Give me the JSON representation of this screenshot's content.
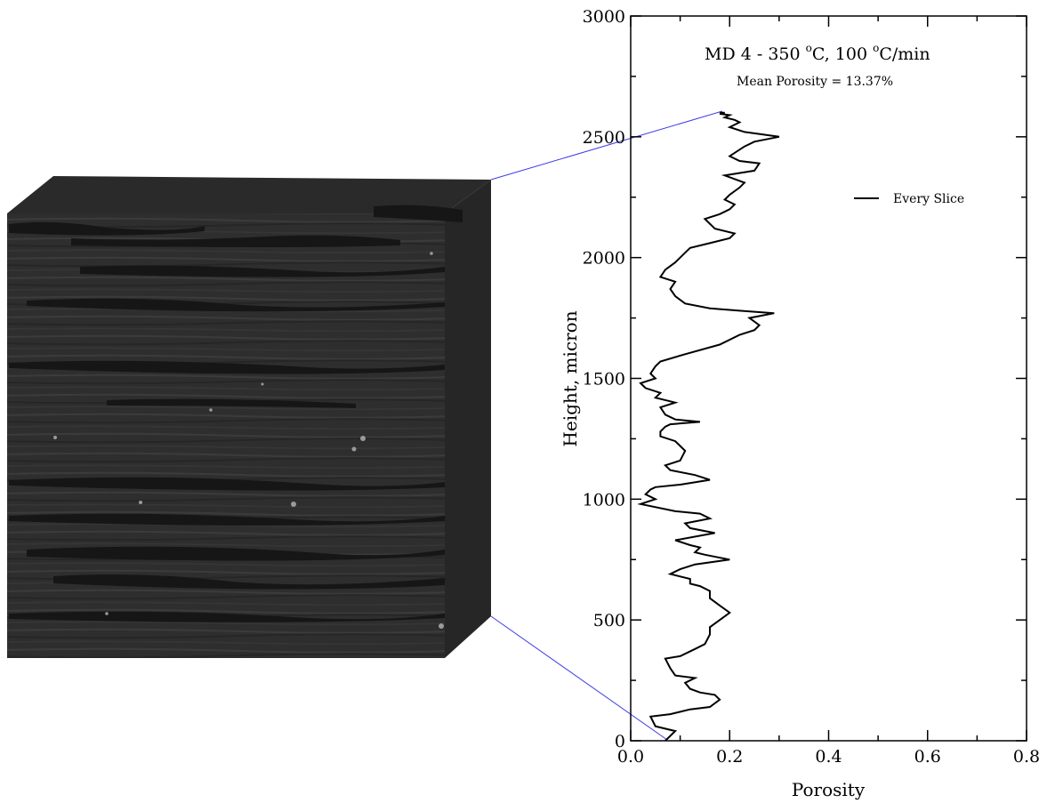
{
  "chart_data": {
    "type": "line",
    "title_main": "MD 4 - 350 ",
    "title_deg1": "o",
    "title_mid": "C, 100 ",
    "title_deg2": "o",
    "title_end": "C/min",
    "subtitle": "Mean Porosity = 13.37%",
    "xlabel": "Porosity",
    "ylabel": "Height, micron",
    "xlim": [
      0.0,
      0.8
    ],
    "ylim": [
      0,
      3000
    ],
    "x_ticks": [
      "0.0",
      "0.2",
      "0.4",
      "0.6",
      "0.8"
    ],
    "y_ticks": [
      "0",
      "500",
      "1000",
      "1500",
      "2000",
      "2500",
      "3000"
    ],
    "legend": {
      "label": "Every Slice",
      "placement": "top-right"
    },
    "grid": false,
    "series": [
      {
        "name": "Every Slice",
        "x": [
          0.07,
          0.09,
          0.05,
          0.04,
          0.08,
          0.12,
          0.16,
          0.18,
          0.17,
          0.14,
          0.12,
          0.11,
          0.13,
          0.09,
          0.08,
          0.07,
          0.1,
          0.13,
          0.15,
          0.16,
          0.16,
          0.18,
          0.2,
          0.18,
          0.16,
          0.16,
          0.14,
          0.12,
          0.12,
          0.08,
          0.1,
          0.13,
          0.2,
          0.15,
          0.13,
          0.14,
          0.12,
          0.09,
          0.17,
          0.12,
          0.11,
          0.16,
          0.14,
          0.09,
          0.02,
          0.05,
          0.03,
          0.04,
          0.05,
          0.1,
          0.16,
          0.13,
          0.08,
          0.07,
          0.1,
          0.11,
          0.09,
          0.06,
          0.06,
          0.07,
          0.08,
          0.14,
          0.09,
          0.07,
          0.06,
          0.09,
          0.05,
          0.06,
          0.03,
          0.02,
          0.05,
          0.04,
          0.05,
          0.06,
          0.11,
          0.18,
          0.22,
          0.25,
          0.26,
          0.24,
          0.29,
          0.22,
          0.16,
          0.11,
          0.09,
          0.08,
          0.09,
          0.06,
          0.07,
          0.09,
          0.1,
          0.11,
          0.12,
          0.16,
          0.2,
          0.21,
          0.17,
          0.16,
          0.15,
          0.18,
          0.2,
          0.21,
          0.19,
          0.2,
          0.22,
          0.23,
          0.19,
          0.25,
          0.26,
          0.22,
          0.2,
          0.23,
          0.25,
          0.3,
          0.23,
          0.2,
          0.22,
          0.21,
          0.19,
          0.2,
          0.18,
          0.19,
          0.18
        ],
        "y": [
          0,
          40,
          60,
          100,
          110,
          130,
          140,
          170,
          190,
          200,
          215,
          240,
          260,
          270,
          300,
          340,
          350,
          380,
          400,
          440,
          470,
          500,
          530,
          560,
          590,
          620,
          640,
          650,
          670,
          690,
          710,
          730,
          750,
          770,
          780,
          800,
          810,
          830,
          860,
          880,
          900,
          920,
          940,
          950,
          980,
          1000,
          1020,
          1040,
          1050,
          1060,
          1080,
          1100,
          1120,
          1140,
          1160,
          1200,
          1240,
          1260,
          1280,
          1300,
          1310,
          1320,
          1330,
          1350,
          1380,
          1400,
          1420,
          1440,
          1460,
          1480,
          1500,
          1520,
          1550,
          1570,
          1600,
          1640,
          1680,
          1700,
          1720,
          1750,
          1770,
          1780,
          1790,
          1810,
          1840,
          1870,
          1900,
          1920,
          1950,
          1980,
          2000,
          2020,
          2040,
          2060,
          2080,
          2100,
          2120,
          2140,
          2160,
          2180,
          2200,
          2220,
          2240,
          2260,
          2290,
          2310,
          2340,
          2360,
          2390,
          2400,
          2420,
          2460,
          2480,
          2500,
          2520,
          2540,
          2560,
          2570,
          2580,
          2590,
          2595,
          2600,
          2600
        ]
      }
    ]
  }
}
